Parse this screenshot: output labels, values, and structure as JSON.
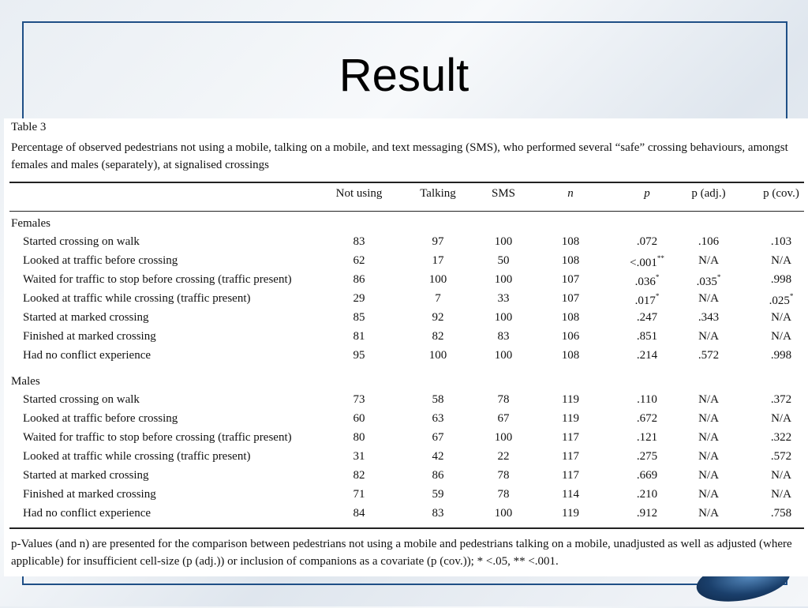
{
  "slide": {
    "title": "Result"
  },
  "table": {
    "label": "Table 3",
    "caption": "Percentage of observed pedestrians not using a mobile, talking on a mobile, and text messaging (SMS), who performed several “safe” crossing behaviours, amongst females and males (separately), at signalised crossings",
    "columns": [
      "Not using",
      "Talking",
      "SMS",
      "n",
      "p",
      "p (adj.)",
      "p (cov.)"
    ],
    "groups": [
      {
        "name": "Females",
        "rows": [
          {
            "label": "Started crossing on walk",
            "not_using": "83",
            "talking": "97",
            "sms": "100",
            "n": "108",
            "p": ".072",
            "p_adj": ".106",
            "p_cov": ".103"
          },
          {
            "label": "Looked at traffic before crossing",
            "not_using": "62",
            "talking": "17",
            "sms": "50",
            "n": "108",
            "p": "<.001",
            "p_sup": "**",
            "p_adj": "N/A",
            "p_cov": "N/A"
          },
          {
            "label": "Waited for traffic to stop before crossing (traffic present)",
            "not_using": "86",
            "talking": "100",
            "sms": "100",
            "n": "107",
            "p": ".036",
            "p_sup": "*",
            "p_adj": ".035",
            "p_adj_sup": "*",
            "p_cov": ".998"
          },
          {
            "label": "Looked at traffic while crossing (traffic present)",
            "not_using": "29",
            "talking": "7",
            "sms": "33",
            "n": "107",
            "p": ".017",
            "p_sup": "*",
            "p_adj": "N/A",
            "p_cov": ".025",
            "p_cov_sup": "*"
          },
          {
            "label": "Started at marked crossing",
            "not_using": "85",
            "talking": "92",
            "sms": "100",
            "n": "108",
            "p": ".247",
            "p_adj": ".343",
            "p_cov": "N/A"
          },
          {
            "label": "Finished at marked crossing",
            "not_using": "81",
            "talking": "82",
            "sms": "83",
            "n": "106",
            "p": ".851",
            "p_adj": "N/A",
            "p_cov": "N/A"
          },
          {
            "label": "Had no conflict experience",
            "not_using": "95",
            "talking": "100",
            "sms": "100",
            "n": "108",
            "p": ".214",
            "p_adj": ".572",
            "p_cov": ".998"
          }
        ]
      },
      {
        "name": "Males",
        "rows": [
          {
            "label": "Started crossing on walk",
            "not_using": "73",
            "talking": "58",
            "sms": "78",
            "n": "119",
            "p": ".110",
            "p_adj": "N/A",
            "p_cov": ".372"
          },
          {
            "label": "Looked at traffic before crossing",
            "not_using": "60",
            "talking": "63",
            "sms": "67",
            "n": "119",
            "p": ".672",
            "p_adj": "N/A",
            "p_cov": "N/A"
          },
          {
            "label": "Waited for traffic to stop before crossing (traffic present)",
            "not_using": "80",
            "talking": "67",
            "sms": "100",
            "n": "117",
            "p": ".121",
            "p_adj": "N/A",
            "p_cov": ".322"
          },
          {
            "label": "Looked at traffic while crossing (traffic present)",
            "not_using": "31",
            "talking": "42",
            "sms": "22",
            "n": "117",
            "p": ".275",
            "p_adj": "N/A",
            "p_cov": ".572"
          },
          {
            "label": "Started at marked crossing",
            "not_using": "82",
            "talking": "86",
            "sms": "78",
            "n": "117",
            "p": ".669",
            "p_adj": "N/A",
            "p_cov": "N/A"
          },
          {
            "label": "Finished at marked crossing",
            "not_using": "71",
            "talking": "59",
            "sms": "78",
            "n": "114",
            "p": ".210",
            "p_adj": "N/A",
            "p_cov": "N/A"
          },
          {
            "label": "Had no conflict experience",
            "not_using": "84",
            "talking": "83",
            "sms": "100",
            "n": "119",
            "p": ".912",
            "p_adj": "N/A",
            "p_cov": ".758"
          }
        ]
      }
    ],
    "footnote": "p-Values (and n) are presented for the comparison between pedestrians not using a mobile and pedestrians talking on a mobile, unadjusted as well as adjusted (where applicable) for insufficient cell-size (p (adj.)) or inclusion of companions as a covariate (p (cov.)); * <.05, ** <.001."
  }
}
